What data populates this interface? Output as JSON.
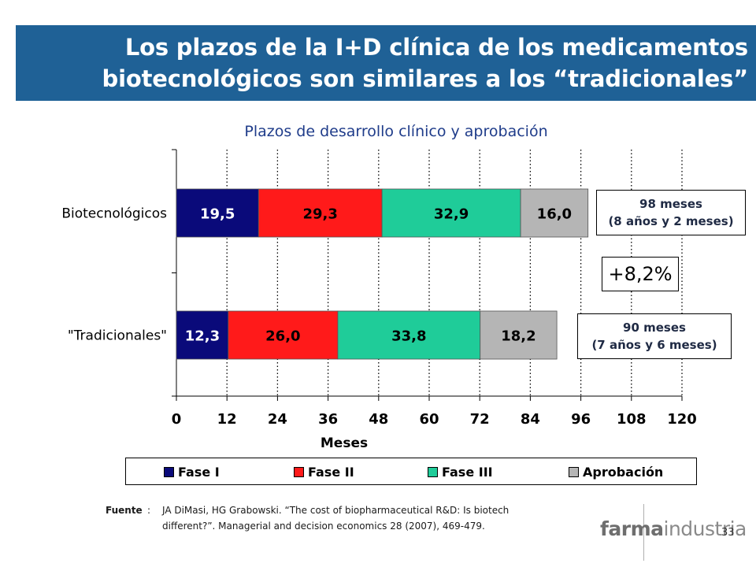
{
  "slide": {
    "title_line1": "Los plazos de la I+D clínica de los medicamentos",
    "title_line2": "biotecnológicos son similares a los “tradicionales”",
    "page_number": "33",
    "logo_bold": "farma",
    "logo_light": "industria"
  },
  "chart_data": {
    "type": "bar",
    "orientation": "horizontal",
    "stacked": true,
    "title": "Plazos de desarrollo clínico y aprobación",
    "xlabel": "Meses",
    "ylabel": "",
    "xlim": [
      0,
      120
    ],
    "xticks": [
      "0",
      "12",
      "24",
      "36",
      "48",
      "60",
      "72",
      "84",
      "96",
      "108",
      "120"
    ],
    "grid": "vertical-dotted",
    "legend_position": "bottom",
    "categories": [
      "Biotecnológicos",
      "\"Tradicionales\""
    ],
    "series": [
      {
        "name": "Fase I",
        "color": "#0a0a7a",
        "values": [
          19.5,
          12.3
        ],
        "labels": [
          "19,5",
          "12,3"
        ]
      },
      {
        "name": "Fase II",
        "color": "#ff1a1a",
        "values": [
          29.3,
          26.0
        ],
        "labels": [
          "29,3",
          "26,0"
        ]
      },
      {
        "name": "Fase III",
        "color": "#1fcc99",
        "values": [
          32.9,
          33.8
        ],
        "labels": [
          "32,9",
          "33,8"
        ]
      },
      {
        "name": "Aprobación",
        "color": "#b5b5b5",
        "values": [
          16.0,
          18.2
        ],
        "labels": [
          "16,0",
          "18,2"
        ]
      }
    ],
    "annotations": {
      "bio_total_line1": "98 meses",
      "bio_total_line2": "(8 años y 2 meses)",
      "trad_total_line1": "90 meses",
      "trad_total_line2": "(7 años y 6 meses)",
      "difference": "+8,2%"
    }
  },
  "source": {
    "label": "Fuente",
    "colon": ":",
    "line1": "JA DiMasi, HG Grabowski. “The cost of biopharmaceutical R&D: Is biotech",
    "line2": "different?”. Managerial and decision economics 28 (2007), 469-479."
  }
}
